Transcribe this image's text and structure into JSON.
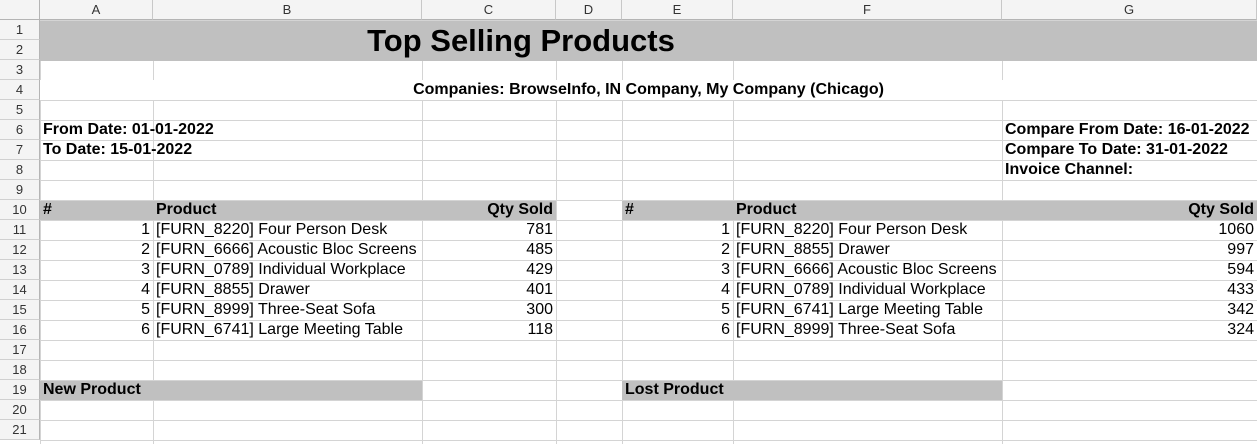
{
  "columns": [
    "A",
    "B",
    "C",
    "D",
    "E",
    "F",
    "G"
  ],
  "rows": [
    "1",
    "2",
    "3",
    "4",
    "5",
    "6",
    "7",
    "8",
    "9",
    "10",
    "11",
    "12",
    "13",
    "14",
    "15",
    "16",
    "17",
    "18",
    "19",
    "20",
    "21"
  ],
  "report": {
    "title": "Top Selling Products",
    "companies": "Companies: BrowseInfo, IN Company, My Company (Chicago)",
    "from_date": "From Date: 01-01-2022",
    "to_date": "To Date: 15-01-2022",
    "compare_from": "Compare From Date: 16-01-2022",
    "compare_to": "Compare To Date: 31-01-2022",
    "invoice_channel": "Invoice Channel:"
  },
  "left_table": {
    "headers": [
      "#",
      "Product",
      "Qty Sold"
    ],
    "rows": [
      {
        "n": "1",
        "product": "[FURN_8220] Four Person Desk",
        "qty": "781"
      },
      {
        "n": "2",
        "product": "[FURN_6666] Acoustic Bloc Screens",
        "qty": "485"
      },
      {
        "n": "3",
        "product": "[FURN_0789] Individual Workplace",
        "qty": "429"
      },
      {
        "n": "4",
        "product": "[FURN_8855] Drawer",
        "qty": "401"
      },
      {
        "n": "5",
        "product": "[FURN_8999] Three-Seat Sofa",
        "qty": "300"
      },
      {
        "n": "6",
        "product": "[FURN_6741] Large Meeting Table",
        "qty": "118"
      }
    ]
  },
  "right_table": {
    "headers": [
      "#",
      "Product",
      "Qty Sold"
    ],
    "rows": [
      {
        "n": "1",
        "product": "[FURN_8220] Four Person Desk",
        "qty": "1060"
      },
      {
        "n": "2",
        "product": "[FURN_8855] Drawer",
        "qty": "997"
      },
      {
        "n": "3",
        "product": "[FURN_6666] Acoustic Bloc Screens",
        "qty": "594"
      },
      {
        "n": "4",
        "product": "[FURN_0789] Individual Workplace",
        "qty": "433"
      },
      {
        "n": "5",
        "product": "[FURN_6741] Large Meeting Table",
        "qty": "342"
      },
      {
        "n": "6",
        "product": "[FURN_8999] Three-Seat Sofa",
        "qty": "324"
      }
    ]
  },
  "sections": {
    "new_product": "New Product",
    "lost_product": "Lost Product"
  }
}
